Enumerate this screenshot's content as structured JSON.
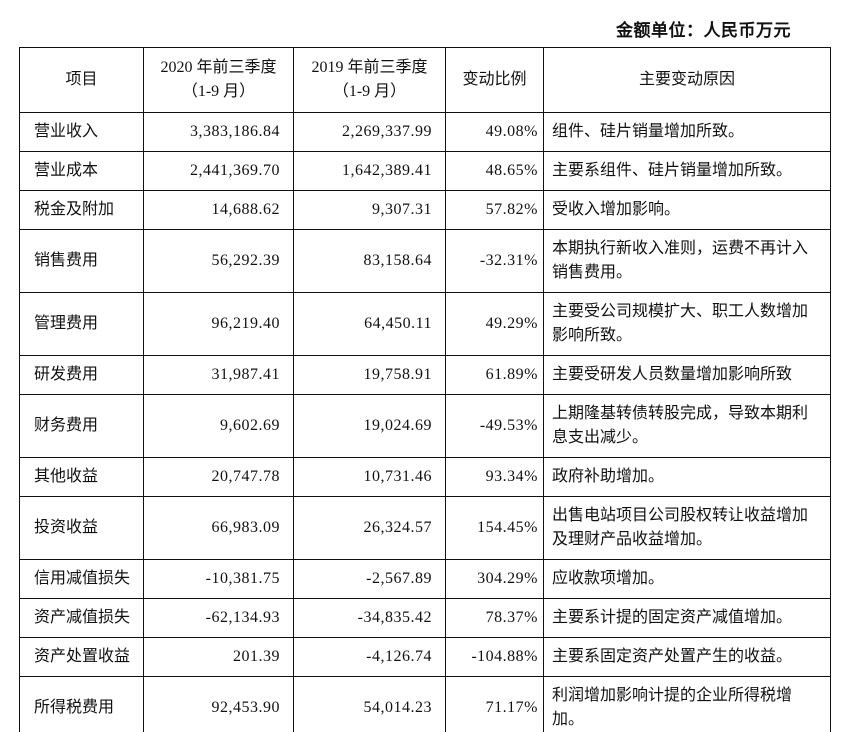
{
  "unit_note": "金额单位：人民币万元",
  "table": {
    "columns": [
      {
        "id": "item",
        "lines": [
          "项目"
        ]
      },
      {
        "id": "y2020",
        "lines": [
          "2020 年前三季度",
          "（1-9 月）"
        ]
      },
      {
        "id": "y2019",
        "lines": [
          "2019 年前三季度",
          "（1-9 月）"
        ]
      },
      {
        "id": "change",
        "lines": [
          "变动比例"
        ]
      },
      {
        "id": "reason",
        "lines": [
          "主要变动原因"
        ]
      }
    ],
    "rows": [
      {
        "item": "营业收入",
        "y2020": "3,383,186.84",
        "y2019": "2,269,337.99",
        "change": "49.08%",
        "reason": "组件、硅片销量增加所致。"
      },
      {
        "item": "营业成本",
        "y2020": "2,441,369.70",
        "y2019": "1,642,389.41",
        "change": "48.65%",
        "reason": "主要系组件、硅片销量增加所致。"
      },
      {
        "item": "税金及附加",
        "y2020": "14,688.62",
        "y2019": "9,307.31",
        "change": "57.82%",
        "reason": "受收入增加影响。"
      },
      {
        "item": "销售费用",
        "y2020": "56,292.39",
        "y2019": "83,158.64",
        "change": "-32.31%",
        "reason": "本期执行新收入准则，运费不再计入销售费用。"
      },
      {
        "item": "管理费用",
        "y2020": "96,219.40",
        "y2019": "64,450.11",
        "change": "49.29%",
        "reason": "主要受公司规模扩大、职工人数增加影响所致。"
      },
      {
        "item": "研发费用",
        "y2020": "31,987.41",
        "y2019": "19,758.91",
        "change": "61.89%",
        "reason": "主要受研发人员数量增加影响所致"
      },
      {
        "item": "财务费用",
        "y2020": "9,602.69",
        "y2019": "19,024.69",
        "change": "-49.53%",
        "reason": "上期隆基转债转股完成，导致本期利息支出减少。"
      },
      {
        "item": "其他收益",
        "y2020": "20,747.78",
        "y2019": "10,731.46",
        "change": "93.34%",
        "reason": "政府补助增加。"
      },
      {
        "item": "投资收益",
        "y2020": "66,983.09",
        "y2019": "26,324.57",
        "change": "154.45%",
        "reason": "出售电站项目公司股权转让收益增加及理财产品收益增加。"
      },
      {
        "item": "信用减值损失",
        "y2020": "-10,381.75",
        "y2019": "-2,567.89",
        "change": "304.29%",
        "reason": "应收款项增加。"
      },
      {
        "item": "资产减值损失",
        "y2020": "-62,134.93",
        "y2019": "-34,835.42",
        "change": "78.37%",
        "reason": "主要系计提的固定资产减值增加。"
      },
      {
        "item": "资产处置收益",
        "y2020": "201.39",
        "y2019": "-4,126.74",
        "change": "-104.88%",
        "reason": "主要系固定资产处置产生的收益。"
      },
      {
        "item": "所得税费用",
        "y2020": "92,453.90",
        "y2019": "54,014.23",
        "change": "71.17%",
        "reason": "利润增加影响计提的企业所得税增加。"
      }
    ]
  }
}
